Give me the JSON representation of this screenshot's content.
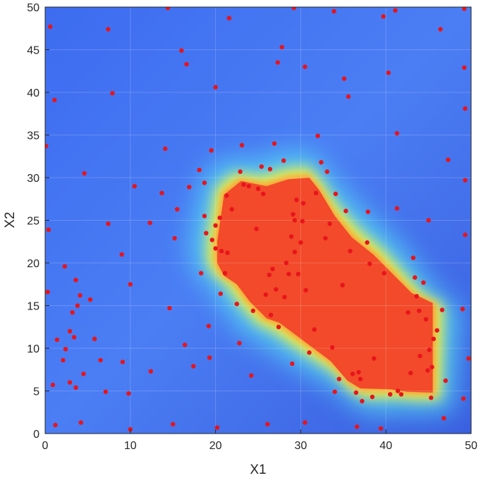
{
  "chart_data": {
    "type": "heatmap",
    "xlabel": "X1",
    "ylabel": "X2",
    "xlim": [
      0,
      50
    ],
    "ylim": [
      0,
      50
    ],
    "xticks": [
      0,
      10,
      20,
      30,
      40,
      50
    ],
    "yticks": [
      0,
      5,
      10,
      15,
      20,
      25,
      30,
      35,
      40,
      45,
      50
    ],
    "grid": true,
    "colormap": "jet",
    "heatmap_background_color": "#4a74ec",
    "point_color": "#e8141b",
    "high_region_color": "#f24a2a",
    "high_region_outline": [
      [
        20.2,
        22.5
      ],
      [
        21.0,
        28.0
      ],
      [
        23.0,
        29.6
      ],
      [
        26.0,
        29.0
      ],
      [
        28.5,
        29.8
      ],
      [
        31.0,
        30.0
      ],
      [
        32.2,
        28.5
      ],
      [
        34.0,
        25.5
      ],
      [
        36.0,
        23.0
      ],
      [
        38.5,
        21.0
      ],
      [
        41.0,
        18.5
      ],
      [
        43.0,
        16.5
      ],
      [
        45.5,
        15.3
      ],
      [
        45.5,
        4.8
      ],
      [
        42.5,
        4.9
      ],
      [
        40.5,
        5.2
      ],
      [
        37.0,
        5.3
      ],
      [
        35.5,
        6.2
      ],
      [
        33.5,
        8.5
      ],
      [
        31.5,
        10.0
      ],
      [
        29.5,
        11.5
      ],
      [
        27.5,
        13.0
      ],
      [
        26.0,
        13.5
      ],
      [
        24.0,
        15.5
      ],
      [
        22.5,
        17.5
      ],
      [
        21.0,
        18.5
      ],
      [
        20.2,
        20.0
      ]
    ],
    "points": [
      [
        0.1,
        33.7
      ],
      [
        0.6,
        47.7
      ],
      [
        1.1,
        39.1
      ],
      [
        0.9,
        5.7
      ],
      [
        1.2,
        1.0
      ],
      [
        0.4,
        23.9
      ],
      [
        0.3,
        16.6
      ],
      [
        1.4,
        11.0
      ],
      [
        2.1,
        8.6
      ],
      [
        2.4,
        9.9
      ],
      [
        2.3,
        19.6
      ],
      [
        2.9,
        12.0
      ],
      [
        3.2,
        14.2
      ],
      [
        3.4,
        11.3
      ],
      [
        3.6,
        18.0
      ],
      [
        3.8,
        15.0
      ],
      [
        4.1,
        16.2
      ],
      [
        3.6,
        5.4
      ],
      [
        2.9,
        6.0
      ],
      [
        4.2,
        1.3
      ],
      [
        4.5,
        7.0
      ],
      [
        4.6,
        30.5
      ],
      [
        5.3,
        15.7
      ],
      [
        5.8,
        11.1
      ],
      [
        6.5,
        8.6
      ],
      [
        7.1,
        4.9
      ],
      [
        7.4,
        24.6
      ],
      [
        7.4,
        47.4
      ],
      [
        7.9,
        39.9
      ],
      [
        9.0,
        21.0
      ],
      [
        9.1,
        8.4
      ],
      [
        9.8,
        4.7
      ],
      [
        10.0,
        17.5
      ],
      [
        10.0,
        0.5
      ],
      [
        10.5,
        29.0
      ],
      [
        12.3,
        24.7
      ],
      [
        12.4,
        7.3
      ],
      [
        13.7,
        28.2
      ],
      [
        14.1,
        33.4
      ],
      [
        14.4,
        49.9
      ],
      [
        14.6,
        14.7
      ],
      [
        15.0,
        1.1
      ],
      [
        15.2,
        22.9
      ],
      [
        15.5,
        26.3
      ],
      [
        16.0,
        44.9
      ],
      [
        16.4,
        10.4
      ],
      [
        16.6,
        43.3
      ],
      [
        16.9,
        28.9
      ],
      [
        17.4,
        7.9
      ],
      [
        18.1,
        30.9
      ],
      [
        18.3,
        18.8
      ],
      [
        18.7,
        29.4
      ],
      [
        18.7,
        25.5
      ],
      [
        18.9,
        23.5
      ],
      [
        19.2,
        12.6
      ],
      [
        19.3,
        8.9
      ],
      [
        19.5,
        33.2
      ],
      [
        19.6,
        22.7
      ],
      [
        20.0,
        40.6
      ],
      [
        20.0,
        24.4
      ],
      [
        20.0,
        21.7
      ],
      [
        20.2,
        0.7
      ],
      [
        20.5,
        25.3
      ],
      [
        20.7,
        21.4
      ],
      [
        20.6,
        16.4
      ],
      [
        21.1,
        18.8
      ],
      [
        21.3,
        27.9
      ],
      [
        21.4,
        21.2
      ],
      [
        21.6,
        48.7
      ],
      [
        21.9,
        26.3
      ],
      [
        22.5,
        15.2
      ],
      [
        22.8,
        10.6
      ],
      [
        22.9,
        30.7
      ],
      [
        23.1,
        33.8
      ],
      [
        23.3,
        29.2
      ],
      [
        23.9,
        29.0
      ],
      [
        24.2,
        6.8
      ],
      [
        24.4,
        14.4
      ],
      [
        24.8,
        24.0
      ],
      [
        25.0,
        28.7
      ],
      [
        25.4,
        31.3
      ],
      [
        25.6,
        28.1
      ],
      [
        25.9,
        16.3
      ],
      [
        26.1,
        1.1
      ],
      [
        26.3,
        18.6
      ],
      [
        26.4,
        31.0
      ],
      [
        26.5,
        13.9
      ],
      [
        26.7,
        19.3
      ],
      [
        26.9,
        34.0
      ],
      [
        27.1,
        16.9
      ],
      [
        27.3,
        43.5
      ],
      [
        27.4,
        12.5
      ],
      [
        27.8,
        45.3
      ],
      [
        28.0,
        32.0
      ],
      [
        28.1,
        16.0
      ],
      [
        28.3,
        20.0
      ],
      [
        28.6,
        18.7
      ],
      [
        28.9,
        23.1
      ],
      [
        29.0,
        8.2
      ],
      [
        29.1,
        25.7
      ],
      [
        29.2,
        49.9
      ],
      [
        29.3,
        25.0
      ],
      [
        29.3,
        21.3
      ],
      [
        29.5,
        27.4
      ],
      [
        29.7,
        18.7
      ],
      [
        30.0,
        22.4
      ],
      [
        30.2,
        24.9
      ],
      [
        30.3,
        27.0
      ],
      [
        30.5,
        1.3
      ],
      [
        30.5,
        43.0
      ],
      [
        30.6,
        16.8
      ],
      [
        31.0,
        9.5
      ],
      [
        31.6,
        12.2
      ],
      [
        31.8,
        28.2
      ],
      [
        32.0,
        34.9
      ],
      [
        32.4,
        31.8
      ],
      [
        32.9,
        22.9
      ],
      [
        33.1,
        30.7
      ],
      [
        33.4,
        24.6
      ],
      [
        33.7,
        10.1
      ],
      [
        33.9,
        49.5
      ],
      [
        34.0,
        4.9
      ],
      [
        34.1,
        28.1
      ],
      [
        34.5,
        6.4
      ],
      [
        34.9,
        17.4
      ],
      [
        35.1,
        41.6
      ],
      [
        35.3,
        26.1
      ],
      [
        35.6,
        39.5
      ],
      [
        35.8,
        21.4
      ],
      [
        36.1,
        7.0
      ],
      [
        36.5,
        4.8
      ],
      [
        36.6,
        0.8
      ],
      [
        36.8,
        7.2
      ],
      [
        37.0,
        6.4
      ],
      [
        37.2,
        3.8
      ],
      [
        37.8,
        22.4
      ],
      [
        37.9,
        26.0
      ],
      [
        38.1,
        19.9
      ],
      [
        38.4,
        4.3
      ],
      [
        38.6,
        8.8
      ],
      [
        39.4,
        0.6
      ],
      [
        39.7,
        48.9
      ],
      [
        39.8,
        18.8
      ],
      [
        40.3,
        42.3
      ],
      [
        40.5,
        4.6
      ],
      [
        41.1,
        49.6
      ],
      [
        41.3,
        35.2
      ],
      [
        41.3,
        26.4
      ],
      [
        41.4,
        5.0
      ],
      [
        41.8,
        4.6
      ],
      [
        42.6,
        14.2
      ],
      [
        42.9,
        7.1
      ],
      [
        43.2,
        20.6
      ],
      [
        43.4,
        18.3
      ],
      [
        43.6,
        16.1
      ],
      [
        43.9,
        14.4
      ],
      [
        44.0,
        9.1
      ],
      [
        44.4,
        17.7
      ],
      [
        44.7,
        13.4
      ],
      [
        44.9,
        7.4
      ],
      [
        45.0,
        25.0
      ],
      [
        45.1,
        9.8
      ],
      [
        45.3,
        4.2
      ],
      [
        45.4,
        7.8
      ],
      [
        45.6,
        11.1
      ],
      [
        46.0,
        12.1
      ],
      [
        46.4,
        47.4
      ],
      [
        46.6,
        14.5
      ],
      [
        46.8,
        1.8
      ],
      [
        47.0,
        6.2
      ],
      [
        47.3,
        32.1
      ],
      [
        49.0,
        14.6
      ],
      [
        49.1,
        4.1
      ],
      [
        49.2,
        42.9
      ],
      [
        49.2,
        49.8
      ],
      [
        49.3,
        23.3
      ],
      [
        49.3,
        29.7
      ],
      [
        49.3,
        38.1
      ],
      [
        49.7,
        8.8
      ]
    ]
  }
}
